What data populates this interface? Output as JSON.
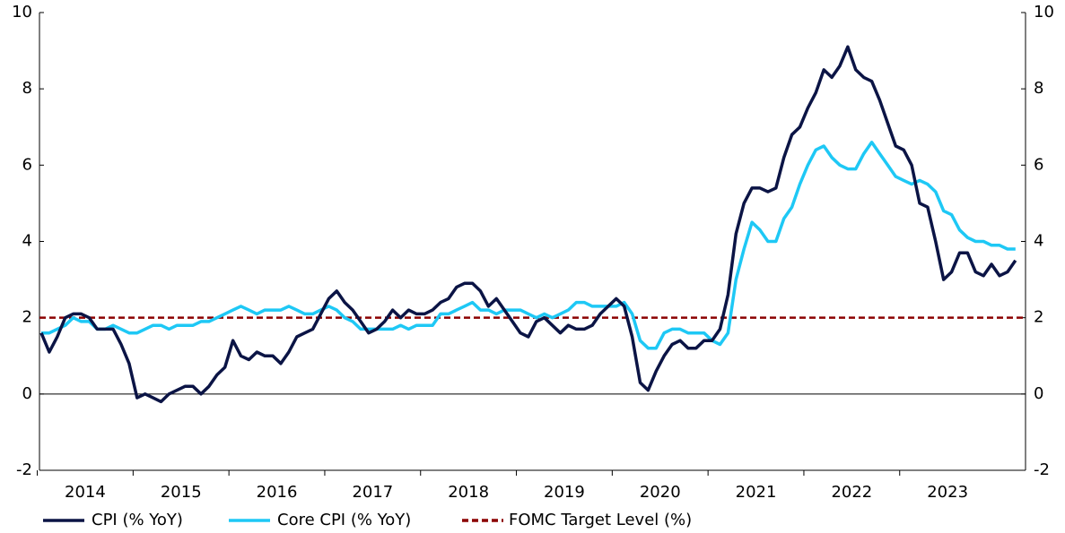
{
  "chart_data": {
    "type": "line",
    "categories": [
      "2014",
      null,
      null,
      null,
      null,
      null,
      null,
      null,
      null,
      null,
      null,
      null,
      "2015",
      null,
      null,
      null,
      null,
      null,
      null,
      null,
      null,
      null,
      null,
      null,
      "2016",
      null,
      null,
      null,
      null,
      null,
      null,
      null,
      null,
      null,
      null,
      null,
      "2017",
      null,
      null,
      null,
      null,
      null,
      null,
      null,
      null,
      null,
      null,
      null,
      "2018",
      null,
      null,
      null,
      null,
      null,
      null,
      null,
      null,
      null,
      null,
      null,
      "2019",
      null,
      null,
      null,
      null,
      null,
      null,
      null,
      null,
      null,
      null,
      null,
      "2020",
      null,
      null,
      null,
      null,
      null,
      null,
      null,
      null,
      null,
      null,
      null,
      "2021",
      null,
      null,
      null,
      null,
      null,
      null,
      null,
      null,
      null,
      null,
      null,
      "2022",
      null,
      null,
      null,
      null,
      null,
      null,
      null,
      null,
      null,
      null,
      null,
      "2023",
      null,
      null,
      null,
      null,
      null,
      null,
      null,
      null,
      null,
      null,
      null,
      null,
      null,
      null
    ],
    "series": [
      {
        "name": "CPI (% YoY)",
        "color": "#0b1445",
        "values": [
          1.6,
          1.1,
          1.5,
          2.0,
          2.1,
          2.1,
          2.0,
          1.7,
          1.7,
          1.7,
          1.3,
          0.8,
          -0.1,
          0.0,
          -0.1,
          -0.2,
          0.0,
          0.1,
          0.2,
          0.2,
          0.0,
          0.2,
          0.5,
          0.7,
          1.4,
          1.0,
          0.9,
          1.1,
          1.0,
          1.0,
          0.8,
          1.1,
          1.5,
          1.6,
          1.7,
          2.1,
          2.5,
          2.7,
          2.4,
          2.2,
          1.9,
          1.6,
          1.7,
          1.9,
          2.2,
          2.0,
          2.2,
          2.1,
          2.1,
          2.2,
          2.4,
          2.5,
          2.8,
          2.9,
          2.9,
          2.7,
          2.3,
          2.5,
          2.2,
          1.9,
          1.6,
          1.5,
          1.9,
          2.0,
          1.8,
          1.6,
          1.8,
          1.7,
          1.7,
          1.8,
          2.1,
          2.3,
          2.5,
          2.3,
          1.5,
          0.3,
          0.1,
          0.6,
          1.0,
          1.3,
          1.4,
          1.2,
          1.2,
          1.4,
          1.4,
          1.7,
          2.6,
          4.2,
          5.0,
          5.4,
          5.4,
          5.3,
          5.4,
          6.2,
          6.8,
          7.0,
          7.5,
          7.9,
          8.5,
          8.3,
          8.6,
          9.1,
          8.5,
          8.3,
          8.2,
          7.7,
          7.1,
          6.5,
          6.4,
          6.0,
          5.0,
          4.9,
          4.0,
          3.0,
          3.2,
          3.7,
          3.7,
          3.2,
          3.1,
          3.4,
          3.1,
          3.2,
          3.5
        ]
      },
      {
        "name": "Core CPI (% YoY)",
        "color": "#1ec8f5",
        "values": [
          1.6,
          1.6,
          1.7,
          1.8,
          2.0,
          1.9,
          1.9,
          1.7,
          1.7,
          1.8,
          1.7,
          1.6,
          1.6,
          1.7,
          1.8,
          1.8,
          1.7,
          1.8,
          1.8,
          1.8,
          1.9,
          1.9,
          2.0,
          2.1,
          2.2,
          2.3,
          2.2,
          2.1,
          2.2,
          2.2,
          2.2,
          2.3,
          2.2,
          2.1,
          2.1,
          2.2,
          2.3,
          2.2,
          2.0,
          1.9,
          1.7,
          1.7,
          1.7,
          1.7,
          1.7,
          1.8,
          1.7,
          1.8,
          1.8,
          1.8,
          2.1,
          2.1,
          2.2,
          2.3,
          2.4,
          2.2,
          2.2,
          2.1,
          2.2,
          2.2,
          2.2,
          2.1,
          2.0,
          2.1,
          2.0,
          2.1,
          2.2,
          2.4,
          2.4,
          2.3,
          2.3,
          2.3,
          2.3,
          2.4,
          2.1,
          1.4,
          1.2,
          1.2,
          1.6,
          1.7,
          1.7,
          1.6,
          1.6,
          1.6,
          1.4,
          1.3,
          1.6,
          3.0,
          3.8,
          4.5,
          4.3,
          4.0,
          4.0,
          4.6,
          4.9,
          5.5,
          6.0,
          6.4,
          6.5,
          6.2,
          6.0,
          5.9,
          5.9,
          6.3,
          6.6,
          6.3,
          6.0,
          5.7,
          5.6,
          5.5,
          5.6,
          5.5,
          5.3,
          4.8,
          4.7,
          4.3,
          4.1,
          4.0,
          4.0,
          3.9,
          3.9,
          3.8,
          3.8
        ]
      }
    ],
    "reference_lines": [
      {
        "name": "FOMC Target Level (%)",
        "value": 2,
        "color": "#8b0000",
        "style": "dashed"
      }
    ],
    "ylim": [
      -2,
      10
    ],
    "yticks": [
      -2,
      0,
      2,
      4,
      6,
      8,
      10
    ],
    "y2lim": [
      -2,
      10
    ],
    "y2ticks": [
      -2,
      0,
      2,
      4,
      6,
      8,
      10
    ],
    "legend": "bottom"
  }
}
